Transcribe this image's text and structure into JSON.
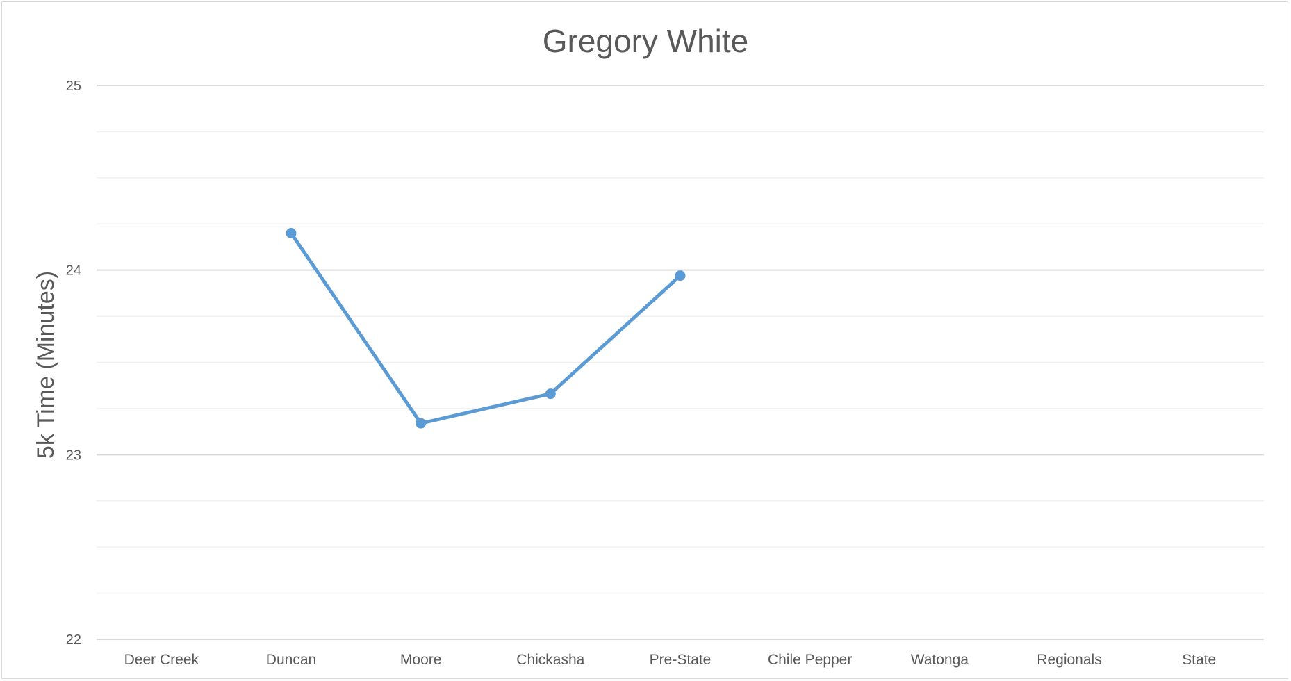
{
  "chart_data": {
    "type": "line",
    "title": "Gregory White",
    "xlabel": "",
    "ylabel": "5k Time (Minutes)",
    "categories": [
      "Deer Creek",
      "Duncan",
      "Moore",
      "Chickasha",
      "Pre-State",
      "Chile Pepper",
      "Watonga",
      "Regionals",
      "State"
    ],
    "series": [
      {
        "values": [
          null,
          24.2,
          23.17,
          23.33,
          23.97,
          null,
          null,
          null,
          null
        ],
        "color": "#5b9bd5"
      }
    ],
    "ylim": [
      22,
      25
    ],
    "yticks": [
      "22",
      "23",
      "24",
      "25"
    ],
    "major_grid": true,
    "minor_grid": true,
    "legend": "none",
    "colors": {
      "line": "#5b9bd5",
      "text": "#595959",
      "major_grid": "#d9d9d9",
      "minor_grid": "#f0f0f0",
      "frame": "#d9d9d9"
    }
  }
}
